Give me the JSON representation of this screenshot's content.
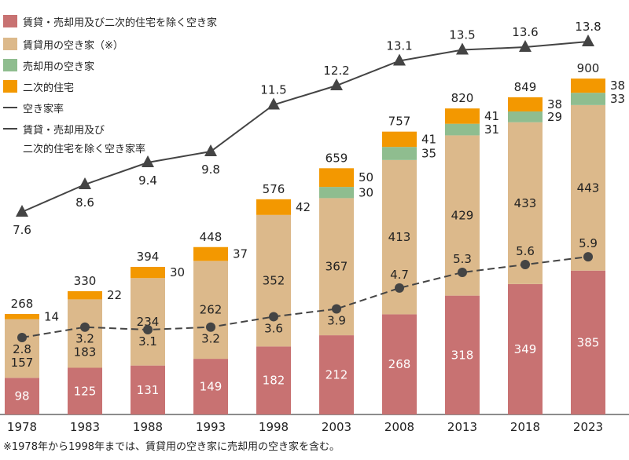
{
  "chart_data": {
    "type": "bar",
    "stacked": true,
    "categories": [
      "1978",
      "1983",
      "1988",
      "1993",
      "1998",
      "2003",
      "2008",
      "2013",
      "2018",
      "2023"
    ],
    "series": [
      {
        "name": "賃貸・売却用及び二次的住宅を除く空き家",
        "color": "#c87272",
        "values": [
          98,
          125,
          131,
          149,
          182,
          212,
          268,
          318,
          349,
          385
        ]
      },
      {
        "name": "賃貸用の空き家（※）",
        "color": "#dcb98b",
        "values": [
          157,
          183,
          234,
          262,
          352,
          367,
          413,
          429,
          433,
          443
        ]
      },
      {
        "name": "売却用の空き家",
        "color": "#8fbd8f",
        "values": [
          null,
          null,
          null,
          null,
          null,
          30,
          35,
          31,
          29,
          33
        ]
      },
      {
        "name": "二次的住宅",
        "color": "#f39800",
        "values": [
          14,
          22,
          30,
          37,
          42,
          50,
          41,
          41,
          38,
          38
        ]
      }
    ],
    "totals": [
      268,
      330,
      394,
      448,
      576,
      659,
      757,
      820,
      849,
      900
    ],
    "lines": [
      {
        "name": "空き家率",
        "marker": "triangle",
        "style": "solid",
        "values": [
          7.6,
          8.6,
          9.4,
          9.8,
          11.5,
          12.2,
          13.1,
          13.5,
          13.6,
          13.8
        ]
      },
      {
        "name": "賃貸・売却用及び二次的住宅を除く空き家率",
        "name_lines": [
          "賃貸・売却用及び",
          "二次的住宅を除く空き家率"
        ],
        "marker": "circle",
        "style": "dashed",
        "values": [
          2.8,
          3.2,
          3.1,
          3.2,
          3.6,
          3.9,
          4.7,
          5.3,
          5.6,
          5.9
        ]
      }
    ],
    "legend": "top-left",
    "grid": false,
    "footnote": "※1978年から1998年までは、賃貸用の空き家に売却用の空き家を含む。"
  }
}
